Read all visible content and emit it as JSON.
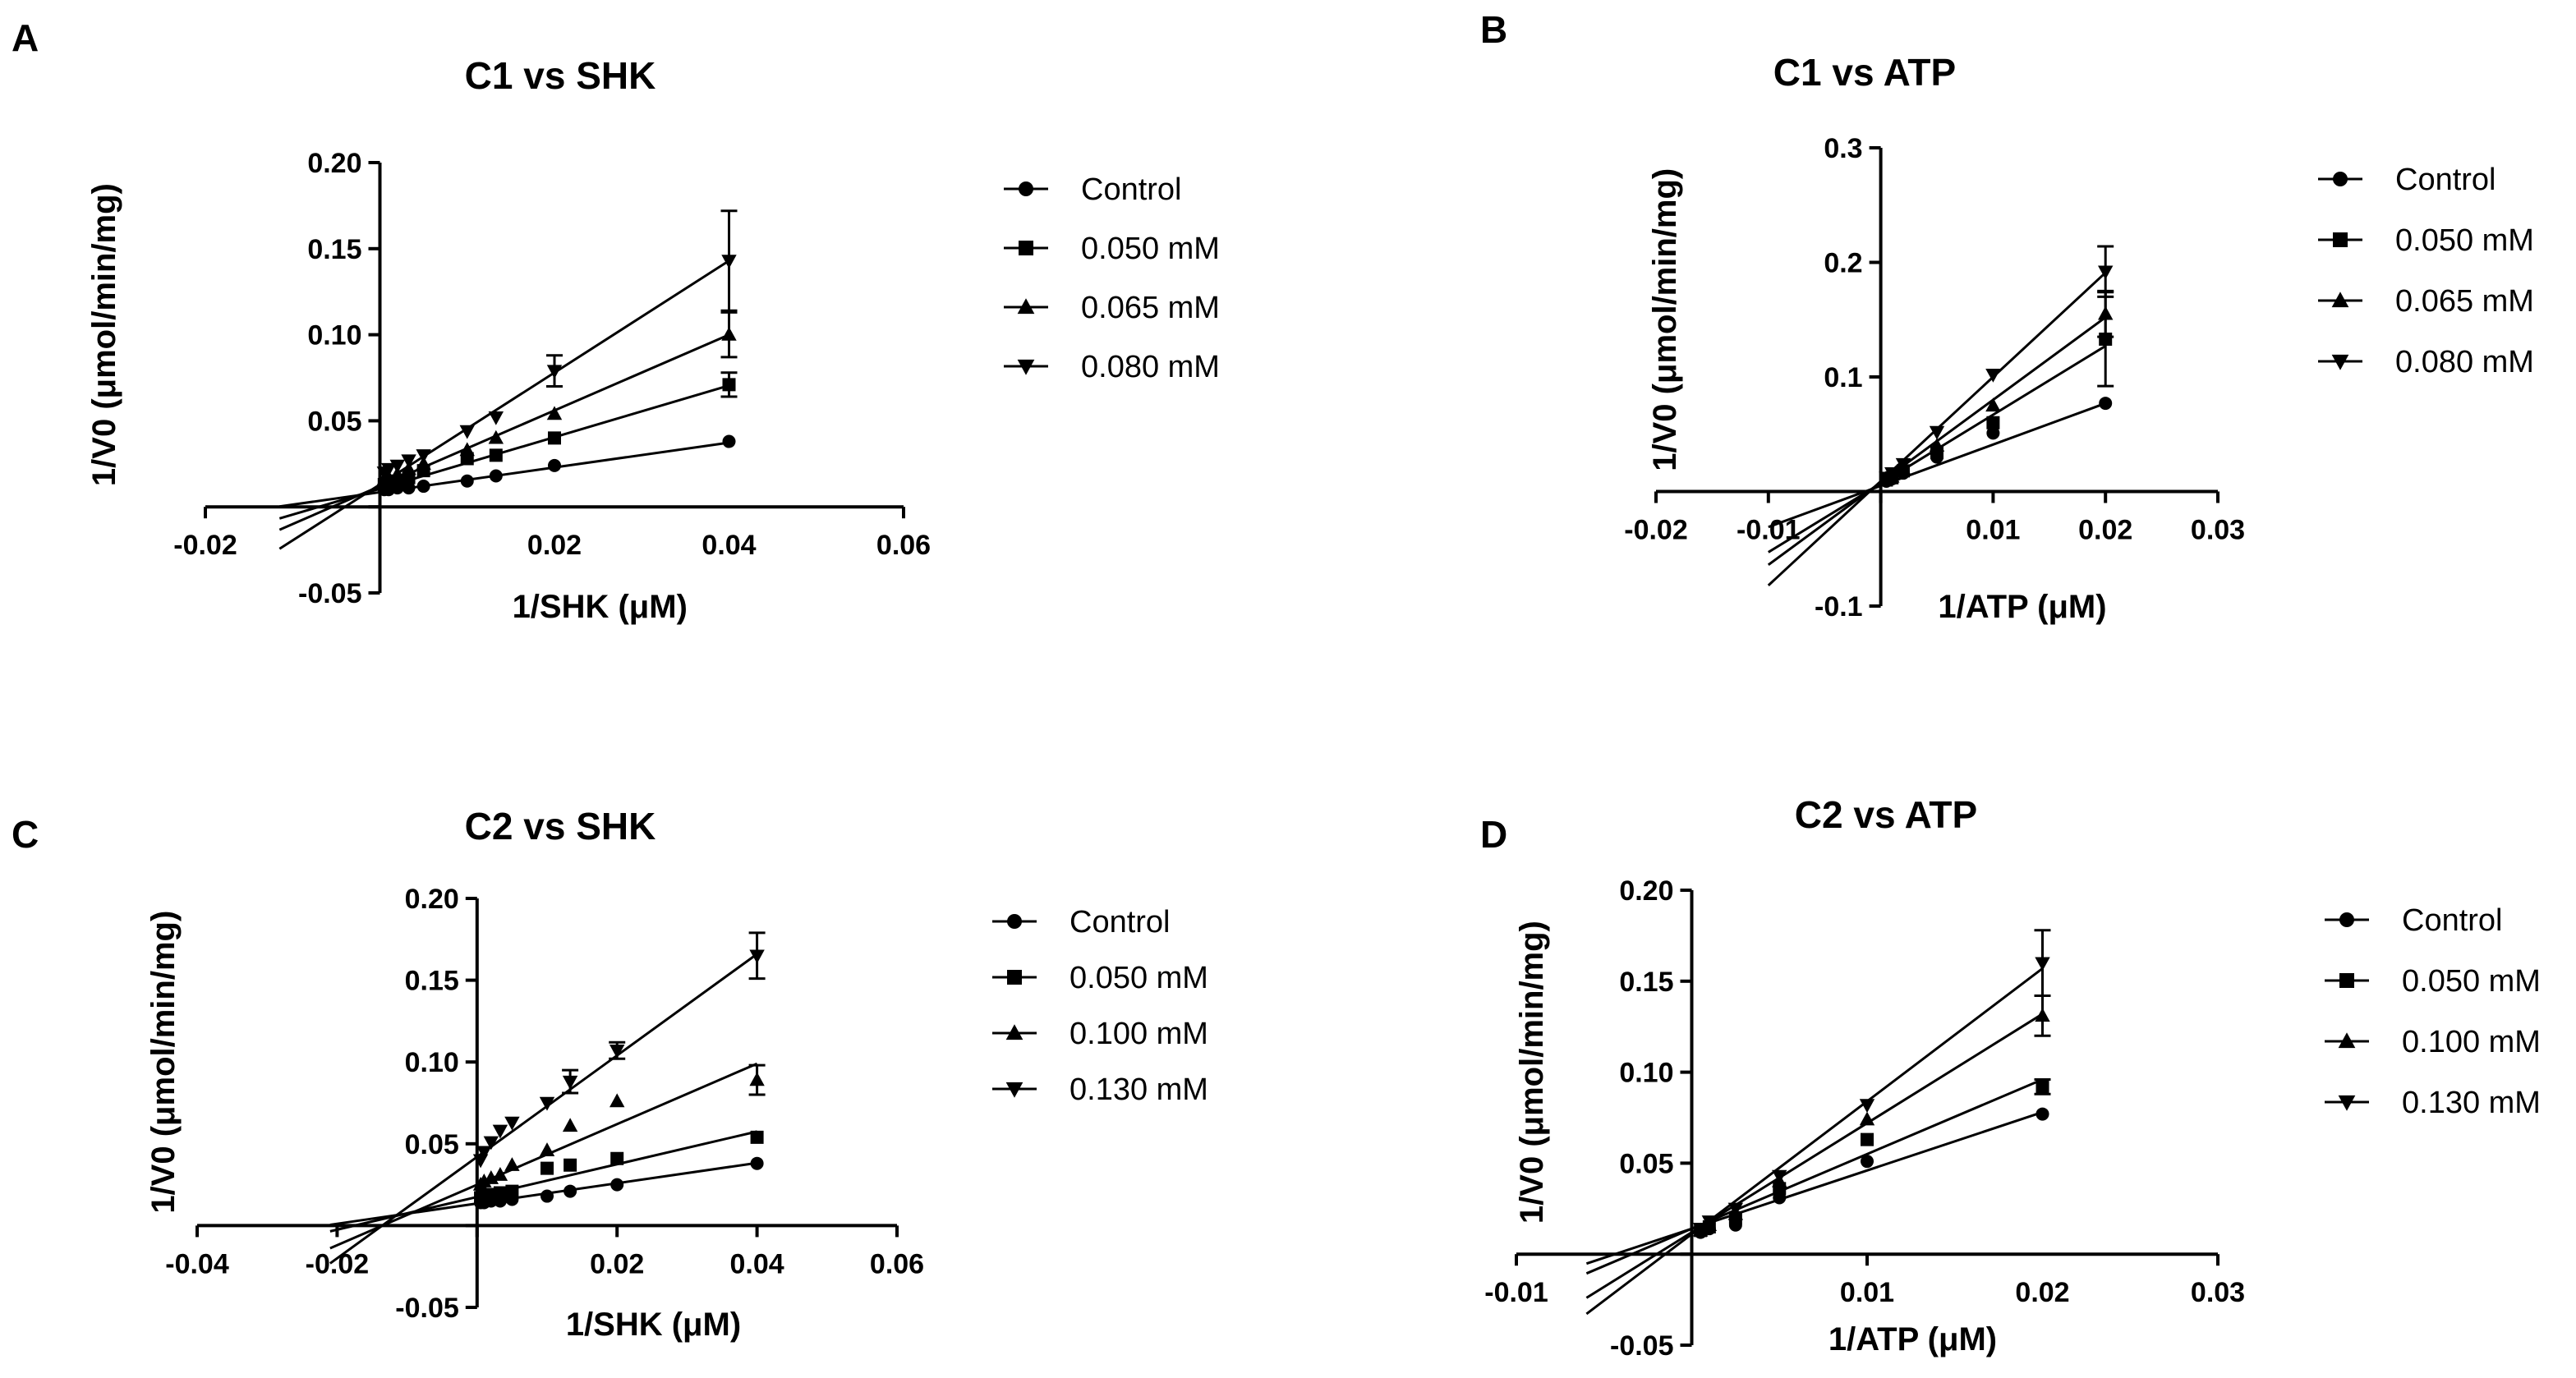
{
  "figure": {
    "panels": [
      "A",
      "B",
      "C",
      "D"
    ]
  },
  "chart_data": [
    {
      "panel": "A",
      "type": "scatter",
      "title": "C1 vs SHK",
      "xlabel": "1/SHK (μM)",
      "ylabel": "1/V0 (μmol/min/mg)",
      "xlim": [
        -0.02,
        0.06
      ],
      "ylim": [
        -0.05,
        0.2
      ],
      "xticks": [
        -0.02,
        0.04,
        0.06
      ],
      "xtick_labels": [
        "-0.02",
        "0.04",
        "0.06"
      ],
      "xticks_below": [
        0.02
      ],
      "xtick_labels_below": [
        "0.02"
      ],
      "yticks": [
        -0.05,
        0.05,
        0.1,
        0.15,
        0.2
      ],
      "ytick_labels": [
        "-0.05",
        "0.05",
        "0.10",
        "0.15",
        "0.20"
      ],
      "legend_position": "right",
      "line_x_start": -0.0115,
      "series": [
        {
          "name": "Control",
          "marker": "circle",
          "slope": 0.72,
          "intercept": 0.0085,
          "x": [
            0.0005,
            0.001,
            0.002,
            0.0033,
            0.005,
            0.01,
            0.0133,
            0.02,
            0.04
          ],
          "y": [
            0.01,
            0.01,
            0.011,
            0.011,
            0.012,
            0.015,
            0.018,
            0.024,
            0.038
          ]
        },
        {
          "name": "0.050 mM",
          "marker": "square",
          "slope": 1.5,
          "intercept": 0.0105,
          "x": [
            0.0005,
            0.001,
            0.002,
            0.0033,
            0.005,
            0.01,
            0.0133,
            0.02,
            0.04
          ],
          "y": [
            0.013,
            0.014,
            0.015,
            0.017,
            0.021,
            0.028,
            0.03,
            0.04,
            0.071
          ],
          "err": [
            0,
            0,
            0,
            0,
            0,
            0,
            0,
            0,
            0.007
          ]
        },
        {
          "name": "0.065 mM",
          "marker": "triangle-up",
          "slope": 2.2,
          "intercept": 0.012,
          "x": [
            0.0005,
            0.001,
            0.002,
            0.0033,
            0.005,
            0.01,
            0.0133,
            0.02,
            0.04
          ],
          "y": [
            0.016,
            0.017,
            0.019,
            0.022,
            0.025,
            0.033,
            0.04,
            0.054,
            0.1
          ],
          "err": [
            0,
            0,
            0,
            0,
            0,
            0,
            0,
            0,
            0.013
          ]
        },
        {
          "name": "0.080 mM",
          "marker": "triangle-down",
          "slope": 3.25,
          "intercept": 0.013,
          "x": [
            0.0005,
            0.001,
            0.002,
            0.0033,
            0.005,
            0.01,
            0.0133,
            0.02,
            0.04
          ],
          "y": [
            0.02,
            0.022,
            0.024,
            0.027,
            0.03,
            0.044,
            0.052,
            0.079,
            0.143
          ],
          "err": [
            0,
            0,
            0,
            0,
            0,
            0,
            0,
            0.009,
            0.029
          ]
        }
      ]
    },
    {
      "panel": "B",
      "type": "scatter",
      "title": "C1 vs ATP",
      "xlabel": "1/ATP (μM)",
      "ylabel": "1/V0 (μmol/min/mg)",
      "xlim": [
        -0.02,
        0.03
      ],
      "ylim": [
        -0.1,
        0.3
      ],
      "xticks": [
        -0.02,
        -0.01,
        0.01,
        0.02,
        0.03
      ],
      "xtick_labels": [
        "-0.02",
        "-0.01",
        "0.01",
        "0.02",
        "0.03"
      ],
      "yticks": [
        -0.1,
        0.1,
        0.2,
        0.3
      ],
      "ytick_labels": [
        "-0.1",
        "0.1",
        "0.2",
        "0.3"
      ],
      "legend_position": "right",
      "line_x_start": -0.01,
      "series": [
        {
          "name": "Control",
          "marker": "circle",
          "slope": 3.6,
          "intercept": 0.005,
          "x": [
            0.0005,
            0.001,
            0.002,
            0.005,
            0.01,
            0.02
          ],
          "y": [
            0.009,
            0.011,
            0.016,
            0.03,
            0.051,
            0.077
          ]
        },
        {
          "name": "0.050 mM",
          "marker": "square",
          "slope": 6.0,
          "intercept": 0.007,
          "x": [
            0.0005,
            0.001,
            0.002,
            0.005,
            0.01,
            0.02
          ],
          "y": [
            0.01,
            0.012,
            0.018,
            0.034,
            0.06,
            0.133
          ],
          "err": [
            0,
            0,
            0,
            0,
            0,
            0.041
          ]
        },
        {
          "name": "0.065 mM",
          "marker": "triangle-up",
          "slope": 7.2,
          "intercept": 0.008,
          "x": [
            0.0005,
            0.001,
            0.002,
            0.005,
            0.01,
            0.02
          ],
          "y": [
            0.011,
            0.013,
            0.02,
            0.04,
            0.075,
            0.155
          ],
          "err": [
            0,
            0,
            0,
            0,
            0,
            0.02
          ]
        },
        {
          "name": "0.080 mM",
          "marker": "triangle-down",
          "slope": 9.1,
          "intercept": 0.009,
          "x": [
            0.0005,
            0.001,
            0.002,
            0.005,
            0.01,
            0.02
          ],
          "y": [
            0.012,
            0.016,
            0.024,
            0.052,
            0.102,
            0.192
          ],
          "err": [
            0,
            0,
            0,
            0,
            0,
            0.022
          ]
        }
      ]
    },
    {
      "panel": "C",
      "type": "scatter",
      "title": "C2 vs SHK",
      "xlabel": "1/SHK (μM)",
      "ylabel": "1/V0 (μmol/min/mg)",
      "xlim": [
        -0.04,
        0.06
      ],
      "ylim": [
        -0.05,
        0.2
      ],
      "xticks": [
        -0.04,
        -0.02,
        0.02,
        0.04,
        0.06
      ],
      "xtick_labels": [
        "-0.04",
        "-0.02",
        "0.02",
        "0.04",
        "0.06"
      ],
      "yticks": [
        -0.05,
        0.05,
        0.1,
        0.15,
        0.2
      ],
      "ytick_labels": [
        "-0.05",
        "0.05",
        "0.10",
        "0.15",
        "0.20"
      ],
      "legend_position": "right",
      "line_x_start": -0.021,
      "series": [
        {
          "name": "Control",
          "marker": "circle",
          "slope": 0.62,
          "intercept": 0.0135,
          "x": [
            0.0005,
            0.001,
            0.002,
            0.0033,
            0.005,
            0.01,
            0.0133,
            0.02,
            0.04
          ],
          "y": [
            0.014,
            0.014,
            0.015,
            0.015,
            0.016,
            0.018,
            0.021,
            0.025,
            0.038
          ]
        },
        {
          "name": "0.050 mM",
          "marker": "square",
          "slope": 1.0,
          "intercept": 0.0175,
          "x": [
            0.0005,
            0.001,
            0.002,
            0.0033,
            0.005,
            0.01,
            0.0133,
            0.02,
            0.04
          ],
          "y": [
            0.017,
            0.018,
            0.019,
            0.02,
            0.021,
            0.035,
            0.037,
            0.041,
            0.054
          ]
        },
        {
          "name": "0.100 mM",
          "marker": "triangle-up",
          "slope": 1.85,
          "intercept": 0.025,
          "x": [
            0.0005,
            0.001,
            0.002,
            0.0033,
            0.005,
            0.01,
            0.0133,
            0.02,
            0.04
          ],
          "y": [
            0.025,
            0.027,
            0.029,
            0.031,
            0.037,
            0.046,
            0.061,
            0.076,
            0.089
          ],
          "err": [
            0,
            0,
            0,
            0,
            0,
            0,
            0,
            0,
            0.009
          ]
        },
        {
          "name": "0.130 mM",
          "marker": "triangle-down",
          "slope": 3.1,
          "intercept": 0.042,
          "x": [
            0.0005,
            0.001,
            0.002,
            0.0033,
            0.005,
            0.01,
            0.0133,
            0.02,
            0.04
          ],
          "y": [
            0.04,
            0.045,
            0.051,
            0.058,
            0.063,
            0.075,
            0.088,
            0.107,
            0.165
          ],
          "err": [
            0,
            0,
            0,
            0,
            0,
            0,
            0.007,
            0.005,
            0.014
          ]
        }
      ]
    },
    {
      "panel": "D",
      "type": "scatter",
      "title": "C2 vs ATP",
      "xlabel": "1/ATP (μM)",
      "ylabel": "1/V0 (μmol/min/mg)",
      "xlim": [
        -0.01,
        0.03
      ],
      "ylim": [
        -0.05,
        0.2
      ],
      "xticks": [
        -0.01,
        0.01,
        0.02,
        0.03
      ],
      "xtick_labels": [
        "-0.01",
        "0.01",
        "0.02",
        "0.03"
      ],
      "yticks": [
        -0.05,
        0.05,
        0.1,
        0.15,
        0.2
      ],
      "ytick_labels": [
        "-0.05",
        "0.05",
        "0.10",
        "0.15",
        "0.20"
      ],
      "legend_position": "right",
      "line_x_start": -0.006,
      "series": [
        {
          "name": "Control",
          "marker": "circle",
          "slope": 3.2,
          "intercept": 0.014,
          "x": [
            0.0005,
            0.001,
            0.0025,
            0.005,
            0.01,
            0.02
          ],
          "y": [
            0.012,
            0.014,
            0.016,
            0.031,
            0.051,
            0.077
          ]
        },
        {
          "name": "0.050 mM",
          "marker": "square",
          "slope": 4.1,
          "intercept": 0.014,
          "x": [
            0.0005,
            0.001,
            0.0025,
            0.005,
            0.01,
            0.02
          ],
          "y": [
            0.013,
            0.015,
            0.02,
            0.036,
            0.063,
            0.092
          ],
          "err": [
            0,
            0,
            0,
            0,
            0,
            0.004
          ]
        },
        {
          "name": "0.100 mM",
          "marker": "triangle-up",
          "slope": 6.0,
          "intercept": 0.012,
          "x": [
            0.0005,
            0.001,
            0.0025,
            0.005,
            0.01,
            0.02
          ],
          "y": [
            0.013,
            0.016,
            0.022,
            0.04,
            0.074,
            0.131
          ],
          "err": [
            0,
            0,
            0,
            0,
            0,
            0.011
          ]
        },
        {
          "name": "0.130 mM",
          "marker": "triangle-down",
          "slope": 7.3,
          "intercept": 0.011,
          "x": [
            0.0005,
            0.001,
            0.0025,
            0.005,
            0.01,
            0.02
          ],
          "y": [
            0.014,
            0.018,
            0.025,
            0.043,
            0.082,
            0.16
          ],
          "err": [
            0,
            0,
            0,
            0,
            0,
            0.018
          ]
        }
      ]
    }
  ]
}
